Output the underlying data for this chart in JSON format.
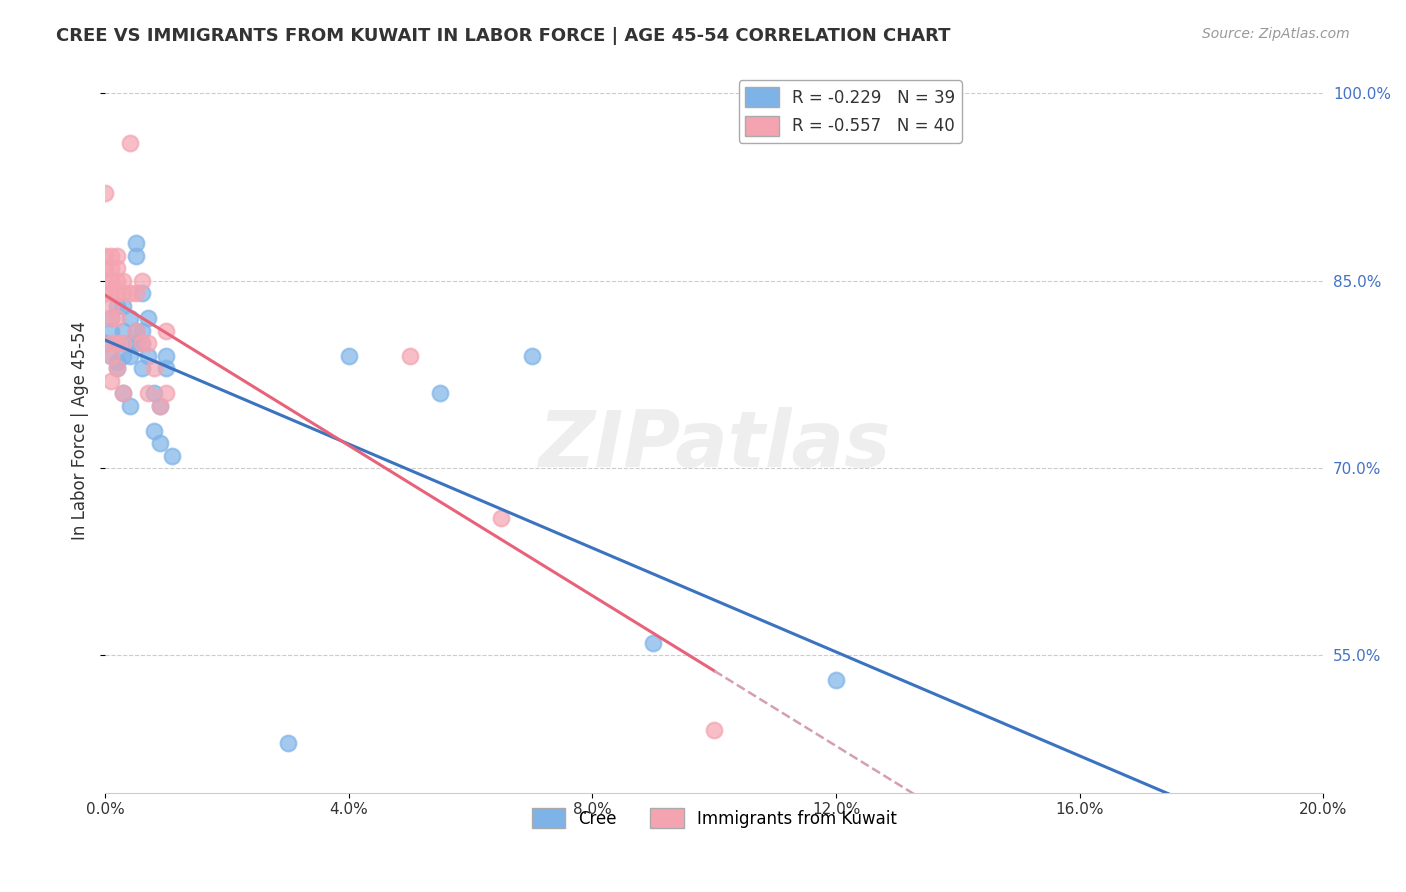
{
  "title": "CREE VS IMMIGRANTS FROM KUWAIT IN LABOR FORCE | AGE 45-54 CORRELATION CHART",
  "source": "Source: ZipAtlas.com",
  "ylabel": "In Labor Force | Age 45-54",
  "xlim": [
    0.0,
    0.2
  ],
  "ylim": [
    0.44,
    1.02
  ],
  "yticks": [
    0.55,
    0.7,
    0.85,
    1.0
  ],
  "ytick_labels": [
    "55.0%",
    "70.0%",
    "85.0%",
    "100.0%"
  ],
  "legend_r_cree": "R = -0.229",
  "legend_n_cree": "N = 39",
  "legend_r_kuwait": "R = -0.557",
  "legend_n_kuwait": "N = 40",
  "cree_color": "#7EB3E8",
  "kuwait_color": "#F4A3B0",
  "cree_line_color": "#3B73C0",
  "kuwait_line_color": "#E8637A",
  "kuwait_line_dashed_color": "#D4A0B0",
  "watermark": "ZIPatlas",
  "cree_points": [
    [
      0.0,
      0.8
    ],
    [
      0.001,
      0.82
    ],
    [
      0.001,
      0.79
    ],
    [
      0.001,
      0.81
    ],
    [
      0.002,
      0.83
    ],
    [
      0.002,
      0.8
    ],
    [
      0.002,
      0.785
    ],
    [
      0.002,
      0.78
    ],
    [
      0.003,
      0.79
    ],
    [
      0.003,
      0.81
    ],
    [
      0.003,
      0.76
    ],
    [
      0.003,
      0.83
    ],
    [
      0.004,
      0.82
    ],
    [
      0.004,
      0.79
    ],
    [
      0.004,
      0.75
    ],
    [
      0.004,
      0.8
    ],
    [
      0.005,
      0.88
    ],
    [
      0.005,
      0.87
    ],
    [
      0.005,
      0.81
    ],
    [
      0.005,
      0.8
    ],
    [
      0.006,
      0.84
    ],
    [
      0.006,
      0.81
    ],
    [
      0.006,
      0.78
    ],
    [
      0.006,
      0.8
    ],
    [
      0.007,
      0.82
    ],
    [
      0.007,
      0.79
    ],
    [
      0.008,
      0.76
    ],
    [
      0.008,
      0.73
    ],
    [
      0.009,
      0.75
    ],
    [
      0.009,
      0.72
    ],
    [
      0.01,
      0.79
    ],
    [
      0.01,
      0.78
    ],
    [
      0.011,
      0.71
    ],
    [
      0.04,
      0.79
    ],
    [
      0.055,
      0.76
    ],
    [
      0.07,
      0.79
    ],
    [
      0.09,
      0.56
    ],
    [
      0.12,
      0.53
    ],
    [
      0.03,
      0.48
    ]
  ],
  "kuwait_points": [
    [
      0.0,
      0.92
    ],
    [
      0.0,
      0.87
    ],
    [
      0.0,
      0.86
    ],
    [
      0.0,
      0.85
    ],
    [
      0.0,
      0.84
    ],
    [
      0.001,
      0.87
    ],
    [
      0.001,
      0.86
    ],
    [
      0.001,
      0.85
    ],
    [
      0.001,
      0.84
    ],
    [
      0.001,
      0.83
    ],
    [
      0.001,
      0.82
    ],
    [
      0.001,
      0.8
    ],
    [
      0.001,
      0.79
    ],
    [
      0.001,
      0.77
    ],
    [
      0.002,
      0.87
    ],
    [
      0.002,
      0.86
    ],
    [
      0.002,
      0.85
    ],
    [
      0.002,
      0.84
    ],
    [
      0.002,
      0.82
    ],
    [
      0.002,
      0.8
    ],
    [
      0.002,
      0.78
    ],
    [
      0.003,
      0.85
    ],
    [
      0.003,
      0.84
    ],
    [
      0.003,
      0.8
    ],
    [
      0.003,
      0.76
    ],
    [
      0.004,
      0.96
    ],
    [
      0.004,
      0.84
    ],
    [
      0.005,
      0.84
    ],
    [
      0.005,
      0.81
    ],
    [
      0.006,
      0.85
    ],
    [
      0.006,
      0.8
    ],
    [
      0.007,
      0.8
    ],
    [
      0.007,
      0.76
    ],
    [
      0.008,
      0.78
    ],
    [
      0.009,
      0.75
    ],
    [
      0.01,
      0.81
    ],
    [
      0.01,
      0.76
    ],
    [
      0.05,
      0.79
    ],
    [
      0.065,
      0.66
    ],
    [
      0.1,
      0.49
    ]
  ]
}
